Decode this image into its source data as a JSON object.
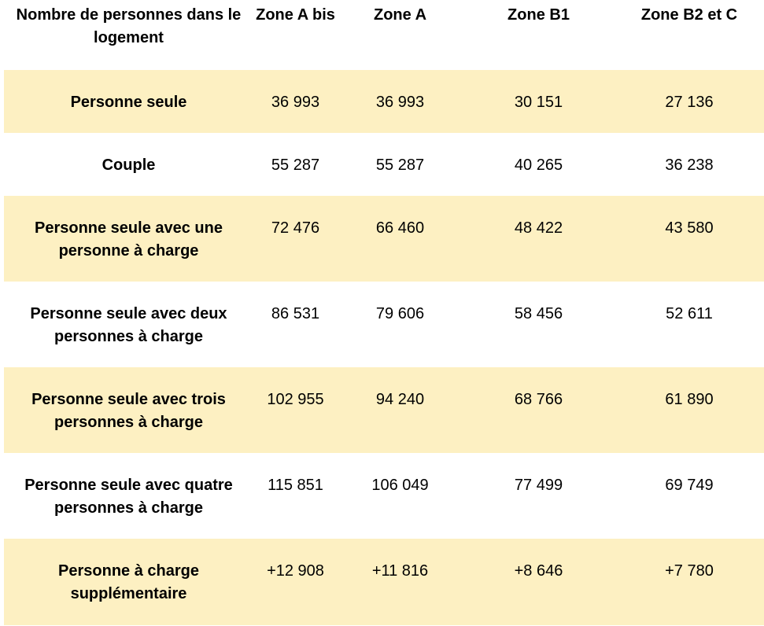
{
  "table": {
    "headers": [
      "Nombre de personnes dans le logement",
      "Zone A bis",
      "Zone A",
      "Zone B1",
      "Zone B2 et C"
    ],
    "rows": [
      {
        "label": "Personne seule",
        "values": [
          "36 993",
          "36 993",
          "30 151",
          "27 136"
        ]
      },
      {
        "label": "Couple",
        "values": [
          "55 287",
          "55 287",
          "40 265",
          "36 238"
        ]
      },
      {
        "label": "Personne seule avec une personne à charge",
        "values": [
          "72 476",
          "66 460",
          "48 422",
          "43 580"
        ]
      },
      {
        "label": "Personne seule avec deux personnes à charge",
        "values": [
          "86 531",
          "79 606",
          "58 456",
          "52 611"
        ]
      },
      {
        "label": "Personne seule avec trois personnes à charge",
        "values": [
          "102 955",
          "94 240",
          "68 766",
          "61 890"
        ]
      },
      {
        "label": "Personne seule avec quatre personnes à charge",
        "values": [
          "115 851",
          "106 049",
          "77 499",
          "69 749"
        ]
      },
      {
        "label": "Personne à charge supplémentaire",
        "values": [
          "+12 908",
          "+11 816",
          "+8 646",
          "+7 780"
        ]
      }
    ]
  },
  "colors": {
    "shade": "#fdf0c2",
    "text": "#000000",
    "background": "#ffffff"
  }
}
